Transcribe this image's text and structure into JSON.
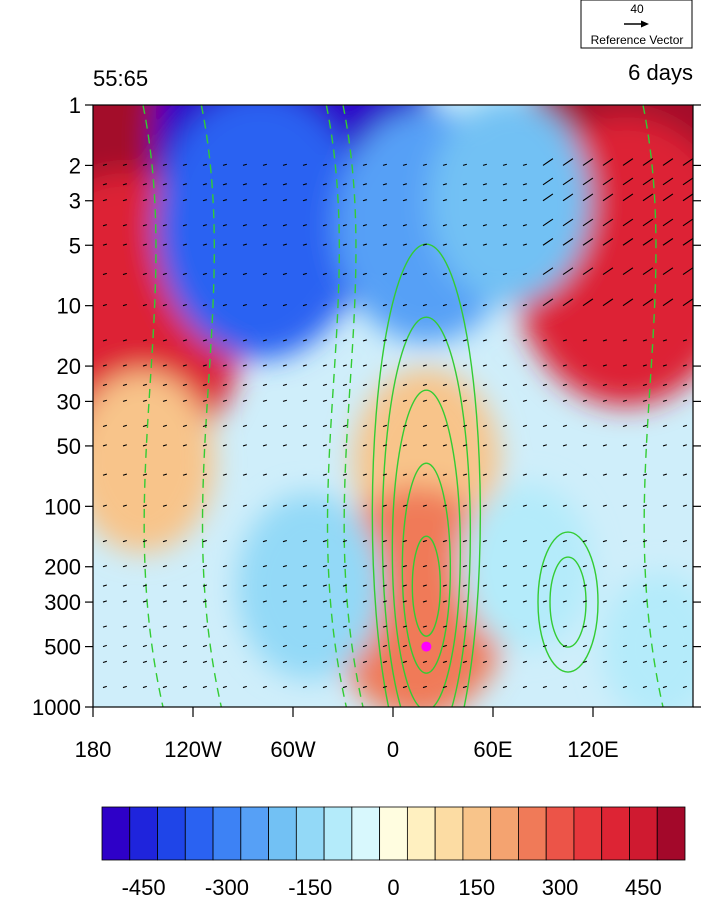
{
  "chart_data": {
    "type": "heatmap",
    "title_left": "55:65",
    "title_right": "6 days",
    "xlabel": "",
    "ylabel": "",
    "xlim": [
      180,
      540
    ],
    "ylim": [
      1000,
      1
    ],
    "y_scale": "log",
    "x_ticks": [
      {
        "value": 180,
        "label": "180"
      },
      {
        "value": 240,
        "label": "120W"
      },
      {
        "value": 300,
        "label": "60W"
      },
      {
        "value": 360,
        "label": "0"
      },
      {
        "value": 420,
        "label": "60E"
      },
      {
        "value": 480,
        "label": "120E"
      }
    ],
    "y_ticks": [
      {
        "value": 1,
        "label": "1"
      },
      {
        "value": 2,
        "label": "2"
      },
      {
        "value": 3,
        "label": "3"
      },
      {
        "value": 5,
        "label": "5"
      },
      {
        "value": 10,
        "label": "10"
      },
      {
        "value": 20,
        "label": "20"
      },
      {
        "value": 30,
        "label": "30"
      },
      {
        "value": 50,
        "label": "50"
      },
      {
        "value": 100,
        "label": "100"
      },
      {
        "value": 200,
        "label": "200"
      },
      {
        "value": 300,
        "label": "300"
      },
      {
        "value": 500,
        "label": "500"
      },
      {
        "value": 1000,
        "label": "1000"
      }
    ],
    "colorbar": {
      "levels": [
        -525,
        -475,
        -425,
        -375,
        -325,
        -275,
        -225,
        -175,
        -125,
        -75,
        -25,
        25,
        75,
        125,
        175,
        225,
        275,
        325,
        375,
        425,
        475,
        525
      ],
      "colors": [
        "#2e00c8",
        "#1f24dc",
        "#1f45e8",
        "#2a62f2",
        "#3d82f5",
        "#56a0f6",
        "#72c1f4",
        "#93d9f7",
        "#b4ebfa",
        "#d8f8fd",
        "#fffde0",
        "#fff0c0",
        "#fcdca3",
        "#f8c48a",
        "#f4a370",
        "#f07a58",
        "#ec5448",
        "#e6373c",
        "#dd2434",
        "#cf1a30",
        "#a3082a"
      ],
      "tick_values": [
        -450,
        -300,
        -150,
        0,
        150,
        300,
        450
      ],
      "tick_labels": [
        "-450",
        "-300",
        "-150",
        "0",
        "150",
        "300",
        "450"
      ]
    },
    "filled_field": [
      {
        "lon": 190,
        "p": 3,
        "v": 480
      },
      {
        "lon": 200,
        "p": 12,
        "v": 400
      },
      {
        "lon": 520,
        "p": 2,
        "v": 520
      },
      {
        "lon": 500,
        "p": 6,
        "v": 380
      },
      {
        "lon": 300,
        "p": 1.5,
        "v": -520
      },
      {
        "lon": 280,
        "p": 4,
        "v": -330
      },
      {
        "lon": 380,
        "p": 4,
        "v": -260
      },
      {
        "lon": 430,
        "p": 3,
        "v": -200
      },
      {
        "lon": 380,
        "p": 60,
        "v": 160
      },
      {
        "lon": 375,
        "p": 300,
        "v": 260
      },
      {
        "lon": 210,
        "p": 60,
        "v": 150
      },
      {
        "lon": 310,
        "p": 250,
        "v": -160
      },
      {
        "lon": 440,
        "p": 200,
        "v": -120
      },
      {
        "lon": 520,
        "p": 500,
        "v": -80
      }
    ],
    "contour_lines": {
      "color": "#33cc33",
      "styles": [
        "solid",
        "dashed"
      ]
    },
    "vectors": {
      "color": "#000000",
      "reference_label": "Reference Vector",
      "reference_value": "40"
    },
    "marker": {
      "lon": 380,
      "p": 500,
      "color": "#ff00ff"
    }
  }
}
